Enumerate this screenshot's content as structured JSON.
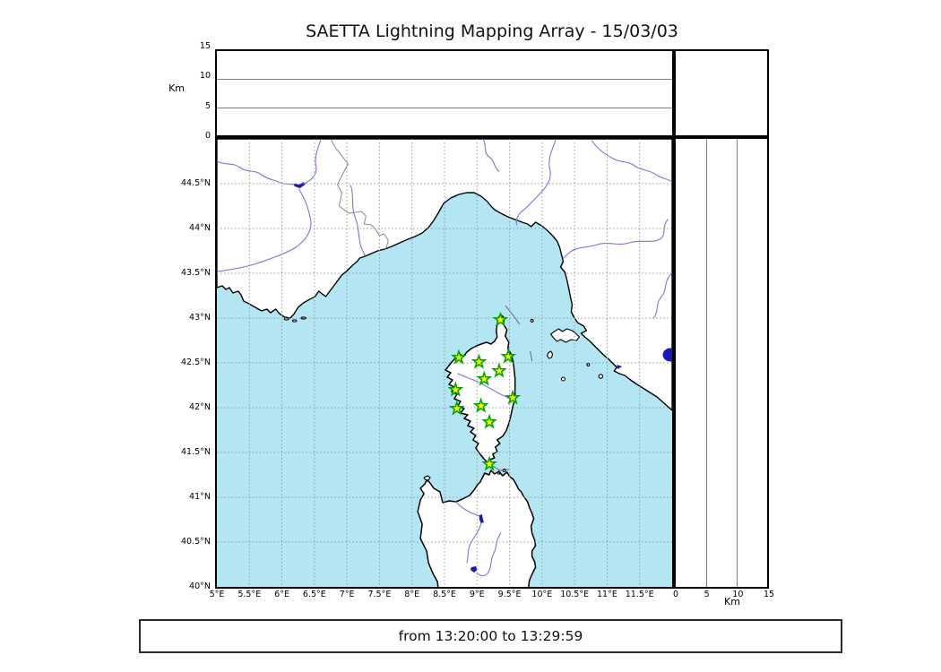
{
  "title": "SAETTA Lightning Mapping Array - 15/03/03",
  "footer": {
    "time_range": "from 13:20:00 to 13:29:59"
  },
  "altitude_panel": {
    "axis_label": "Km",
    "ticks": [
      0,
      5,
      10,
      15
    ],
    "range_km": [
      0,
      15
    ]
  },
  "right_panel": {
    "axis_label": "Km",
    "ticks": [
      0,
      5,
      10,
      15
    ],
    "range_km": [
      0,
      15
    ]
  },
  "colors": {
    "sea": "#b3e6f2",
    "land": "#ffffff",
    "coastline": "#000000",
    "river": "#7878d8",
    "lake": "#1a1ab8",
    "country_border": "#8a8a8a",
    "map_grid": "#999999",
    "panel_grid": "#7d7d7d",
    "station_fill": "#ffff00",
    "station_edge": "#00a300"
  },
  "chart_data": {
    "type": "scatter",
    "title": "SAETTA Lightning Mapping Array - 15/03/03",
    "subtitle": "from 13:20:00 to 13:29:59",
    "description": "Lightning mapping array station map (Corsica) with empty altitude-vs-longitude and altitude-vs-latitude side panels; no lightning sources plotted in this time window",
    "map_extent": {
      "lon_min": 5,
      "lon_max": 12,
      "lat_min": 40,
      "lat_max": 45
    },
    "grid": true,
    "lon_ticks": [
      {
        "value": 5,
        "label": "5°E"
      },
      {
        "value": 5.5,
        "label": "5.5°E"
      },
      {
        "value": 6,
        "label": "6°E"
      },
      {
        "value": 6.5,
        "label": "6.5°E"
      },
      {
        "value": 7,
        "label": "7°E"
      },
      {
        "value": 7.5,
        "label": "7.5°E"
      },
      {
        "value": 8,
        "label": "8°E"
      },
      {
        "value": 8.5,
        "label": "8.5°E"
      },
      {
        "value": 9,
        "label": "9°E"
      },
      {
        "value": 9.5,
        "label": "9.5°E"
      },
      {
        "value": 10,
        "label": "10°E"
      },
      {
        "value": 10.5,
        "label": "10.5°E"
      },
      {
        "value": 11,
        "label": "11°E"
      },
      {
        "value": 11.5,
        "label": "11.5°E"
      }
    ],
    "lat_ticks": [
      {
        "value": 44.5,
        "label": "44.5°N"
      },
      {
        "value": 44,
        "label": "44°N"
      },
      {
        "value": 43.5,
        "label": "43.5°N"
      },
      {
        "value": 43,
        "label": "43°N"
      },
      {
        "value": 42.5,
        "label": "42.5°N"
      },
      {
        "value": 42,
        "label": "42°N"
      },
      {
        "value": 41.5,
        "label": "41.5°N"
      },
      {
        "value": 41,
        "label": "41°N"
      },
      {
        "value": 40.5,
        "label": "40.5°N"
      },
      {
        "value": 40,
        "label": "40°N"
      }
    ],
    "altitude_axis": {
      "label": "Km",
      "ticks": [
        0,
        5,
        10,
        15
      ],
      "range_km": [
        0,
        15
      ]
    },
    "stations": [
      {
        "lon": 9.36,
        "lat": 42.98
      },
      {
        "lon": 8.72,
        "lat": 42.56
      },
      {
        "lon": 9.03,
        "lat": 42.51
      },
      {
        "lon": 9.48,
        "lat": 42.57
      },
      {
        "lon": 9.34,
        "lat": 42.41
      },
      {
        "lon": 9.11,
        "lat": 42.32
      },
      {
        "lon": 8.67,
        "lat": 42.2
      },
      {
        "lon": 9.55,
        "lat": 42.11
      },
      {
        "lon": 9.06,
        "lat": 42.02
      },
      {
        "lon": 8.69,
        "lat": 41.99
      },
      {
        "lon": 9.19,
        "lat": 41.84
      },
      {
        "lon": 9.19,
        "lat": 41.37
      }
    ],
    "lightning_sources": []
  }
}
